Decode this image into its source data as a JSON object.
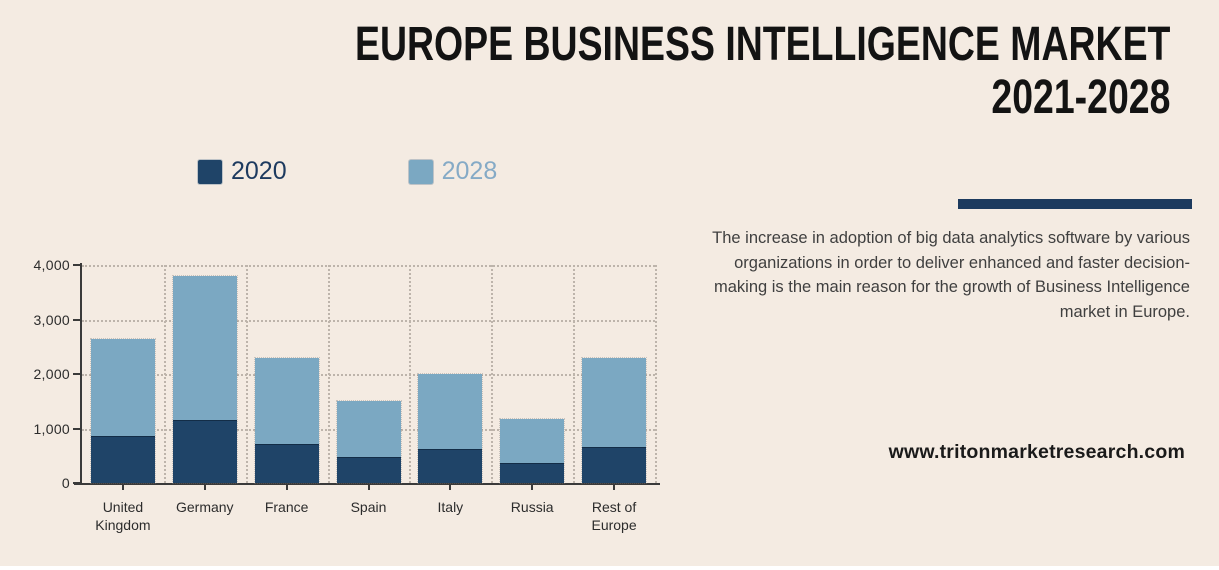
{
  "header": {
    "title_line1": "EUROPE BUSINESS INTELLIGENCE MARKET",
    "title_line2": "2021-2028"
  },
  "description": {
    "text": "The increase in adoption of big data analytics software by various organizations in order to deliver enhanced and faster decision-making is the main reason for the growth of Business Intelligence market in Europe."
  },
  "footer": {
    "website": "www.tritonmarketresearch.com"
  },
  "colors": {
    "background": "#f4ebe2",
    "navy": "#1f4468",
    "light_blue": "#7ba8c2",
    "divider": "#1c3a5e",
    "legend_2020_text": "#1d3a5f",
    "legend_2028_text": "#85aac6",
    "axis": "#3a3a3a",
    "grid_dot": "#bdb4ab"
  },
  "chart_data": {
    "type": "bar",
    "subtype": "overlaid-columns",
    "title": "Europe Business Intelligence Market 2021-2028",
    "categories": [
      "United Kingdom",
      "Germany",
      "France",
      "Spain",
      "Italy",
      "Russia",
      "Rest of Europe"
    ],
    "series": [
      {
        "name": "2020",
        "color_key": "navy",
        "values": [
          850,
          1130,
          700,
          450,
          600,
          350,
          650
        ]
      },
      {
        "name": "2028",
        "color_key": "light_blue",
        "values": [
          2650,
          3800,
          2300,
          1500,
          2000,
          1180,
          2300
        ]
      }
    ],
    "xlabel": "",
    "ylabel": "",
    "ylim": [
      0,
      4000
    ],
    "ytick_step": 1000,
    "ytick_labels": [
      "0",
      "1,000",
      "2,000",
      "3,000",
      "4,000"
    ],
    "grid": "dotted",
    "legend_position": "top-left"
  }
}
